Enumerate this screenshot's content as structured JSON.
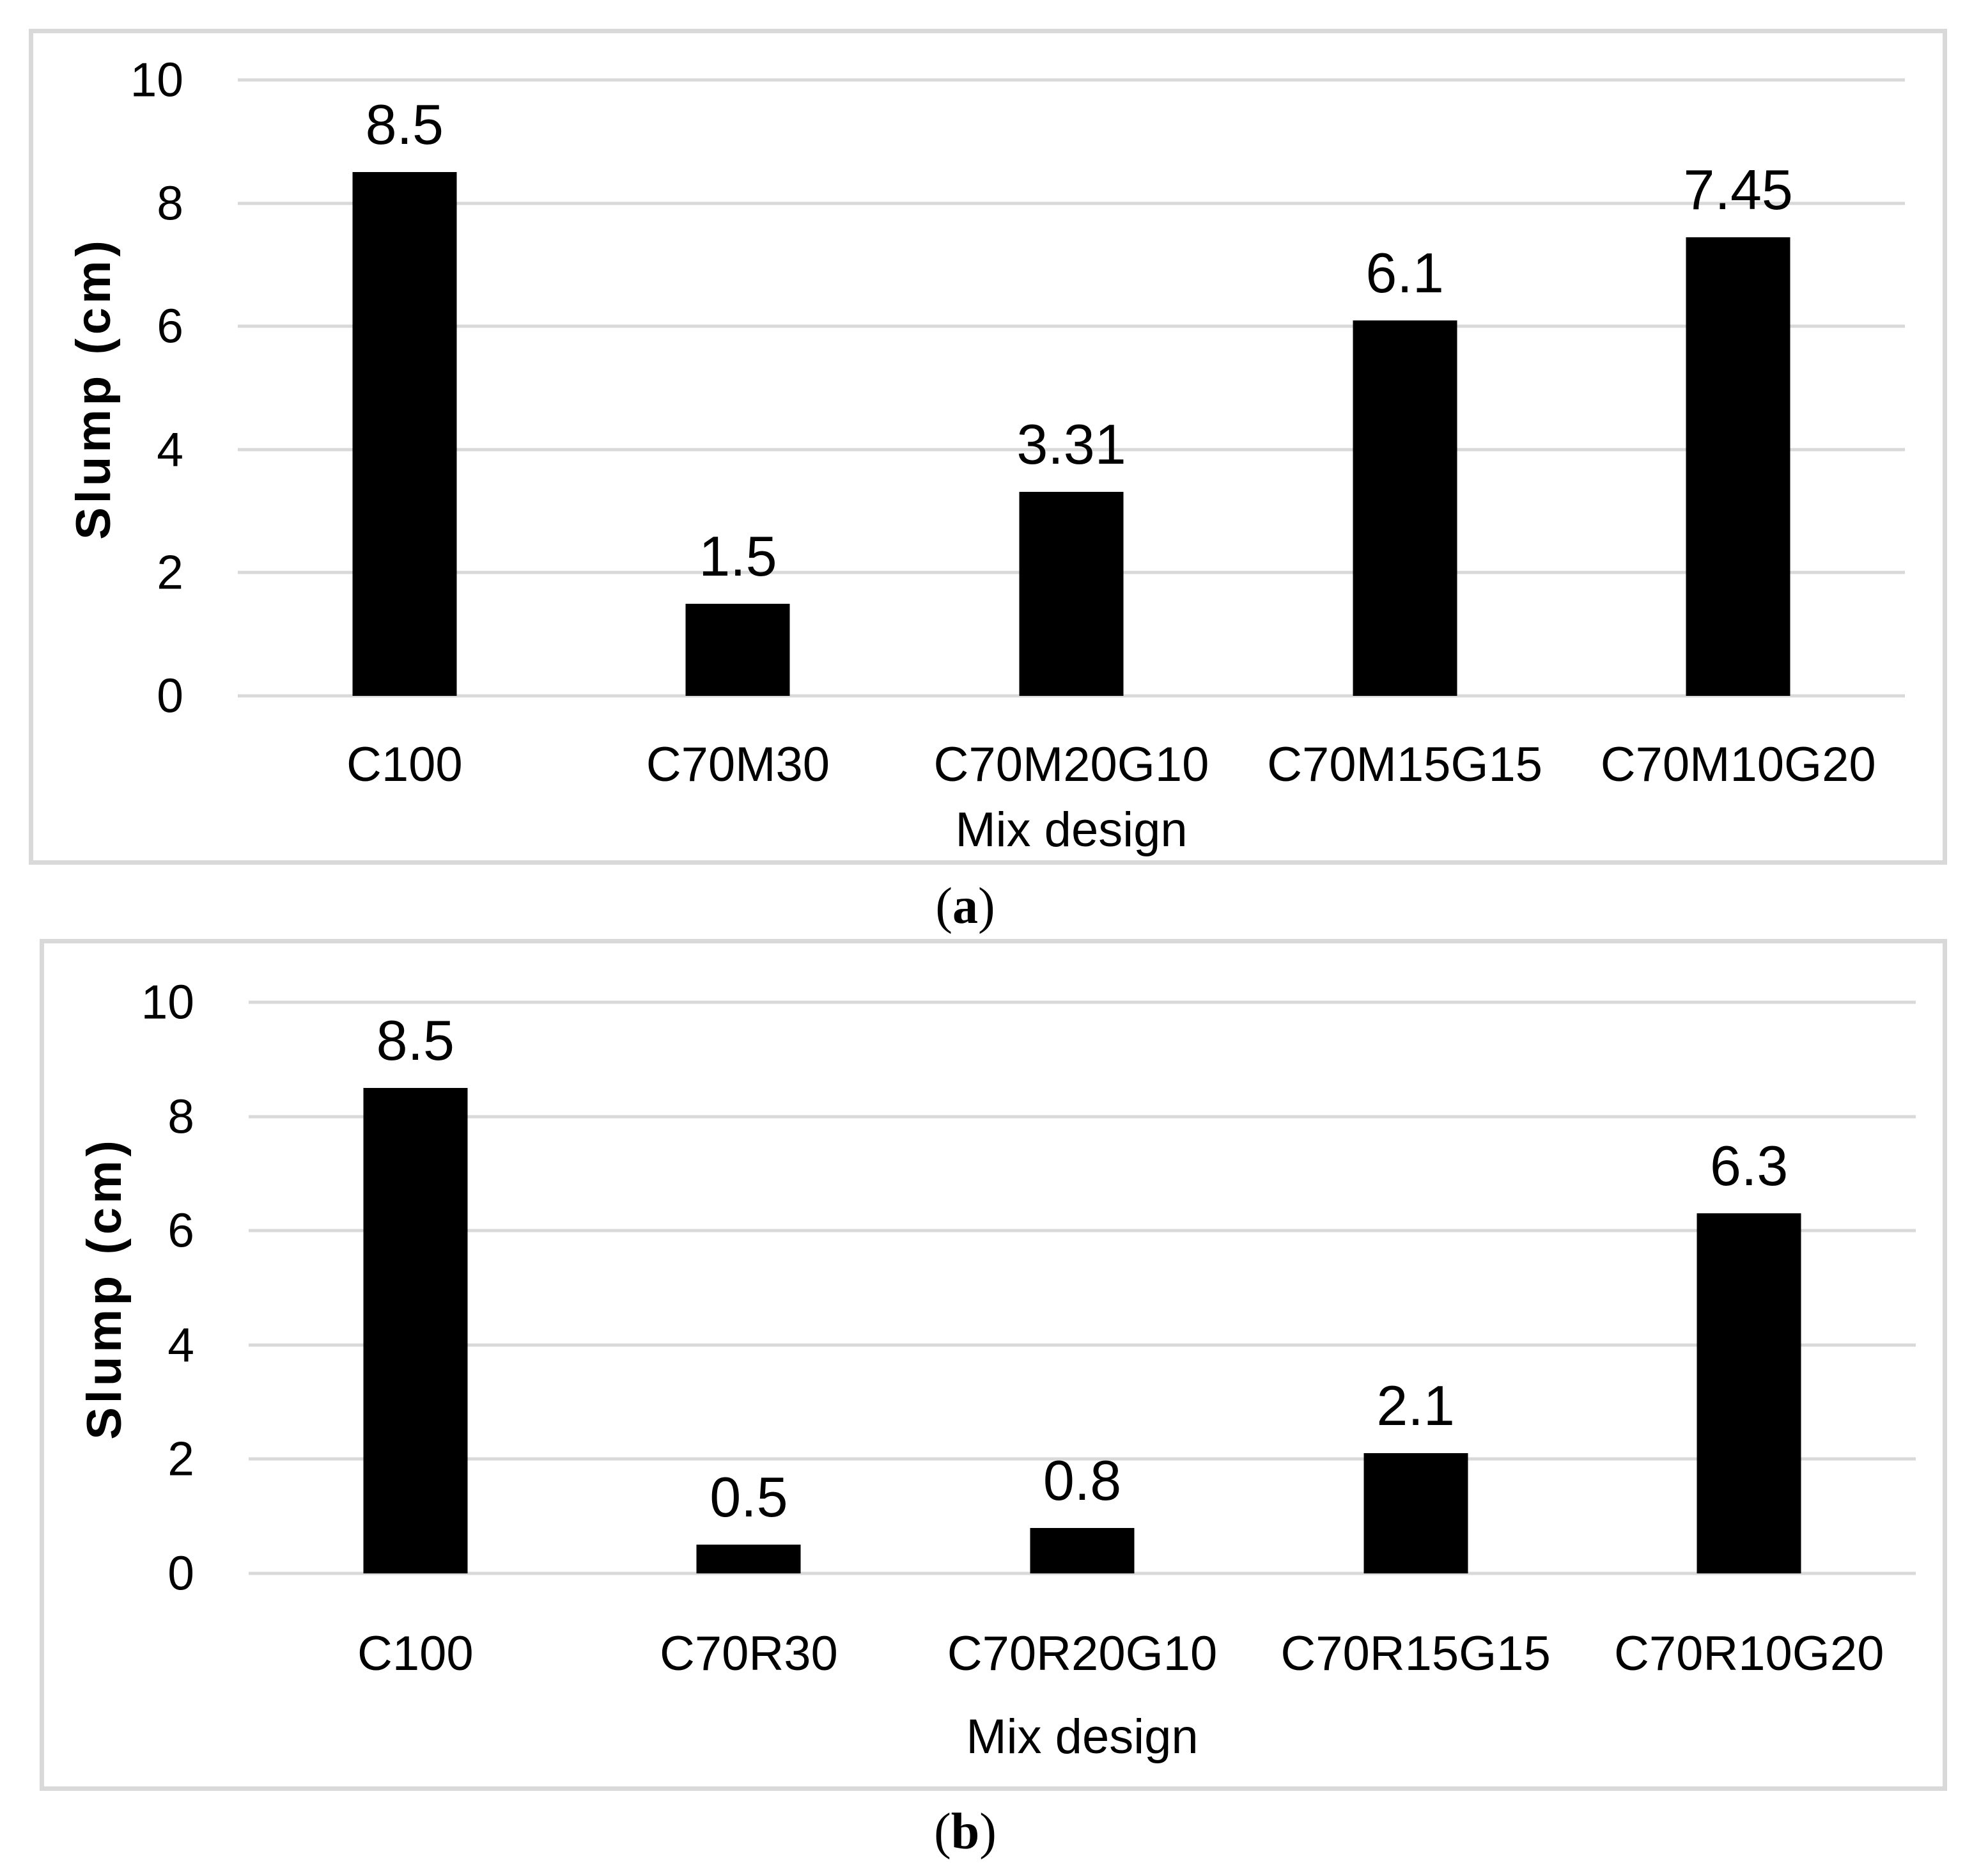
{
  "figure": {
    "bar_color": "#000000",
    "gridline_color": "#d9d9d9",
    "border_color": "#d9d9d9",
    "background_color": "#ffffff"
  },
  "chart_data": [
    {
      "type": "bar",
      "panel": "a",
      "caption_letter": "a",
      "caption_open": "(",
      "caption_close": ")",
      "categories": [
        "C100",
        "C70M30",
        "C70M20G10",
        "C70M15G15",
        "C70M10G20"
      ],
      "values": [
        8.5,
        1.5,
        3.31,
        6.1,
        7.45
      ],
      "value_labels": [
        "8.5",
        "1.5",
        "3.31",
        "6.1",
        "7.45"
      ],
      "xlabel": "Mix design",
      "ylabel": "Slump (cm)",
      "ylim": [
        0,
        10
      ],
      "yticks": [
        0,
        2,
        4,
        6,
        8,
        10
      ],
      "grid": true,
      "legend": "none",
      "bar_color": "#000000"
    },
    {
      "type": "bar",
      "panel": "b",
      "caption_letter": "b",
      "caption_open": "(",
      "caption_close": ")",
      "categories": [
        "C100",
        "C70R30",
        "C70R20G10",
        "C70R15G15",
        "C70R10G20"
      ],
      "values": [
        8.5,
        0.5,
        0.8,
        2.1,
        6.3
      ],
      "value_labels": [
        "8.5",
        "0.5",
        "0.8",
        "2.1",
        "6.3"
      ],
      "xlabel": "Mix design",
      "ylabel": "Slump (cm)",
      "ylim": [
        0,
        10
      ],
      "yticks": [
        0,
        2,
        4,
        6,
        8,
        10
      ],
      "grid": true,
      "legend": "none",
      "bar_color": "#000000"
    }
  ]
}
